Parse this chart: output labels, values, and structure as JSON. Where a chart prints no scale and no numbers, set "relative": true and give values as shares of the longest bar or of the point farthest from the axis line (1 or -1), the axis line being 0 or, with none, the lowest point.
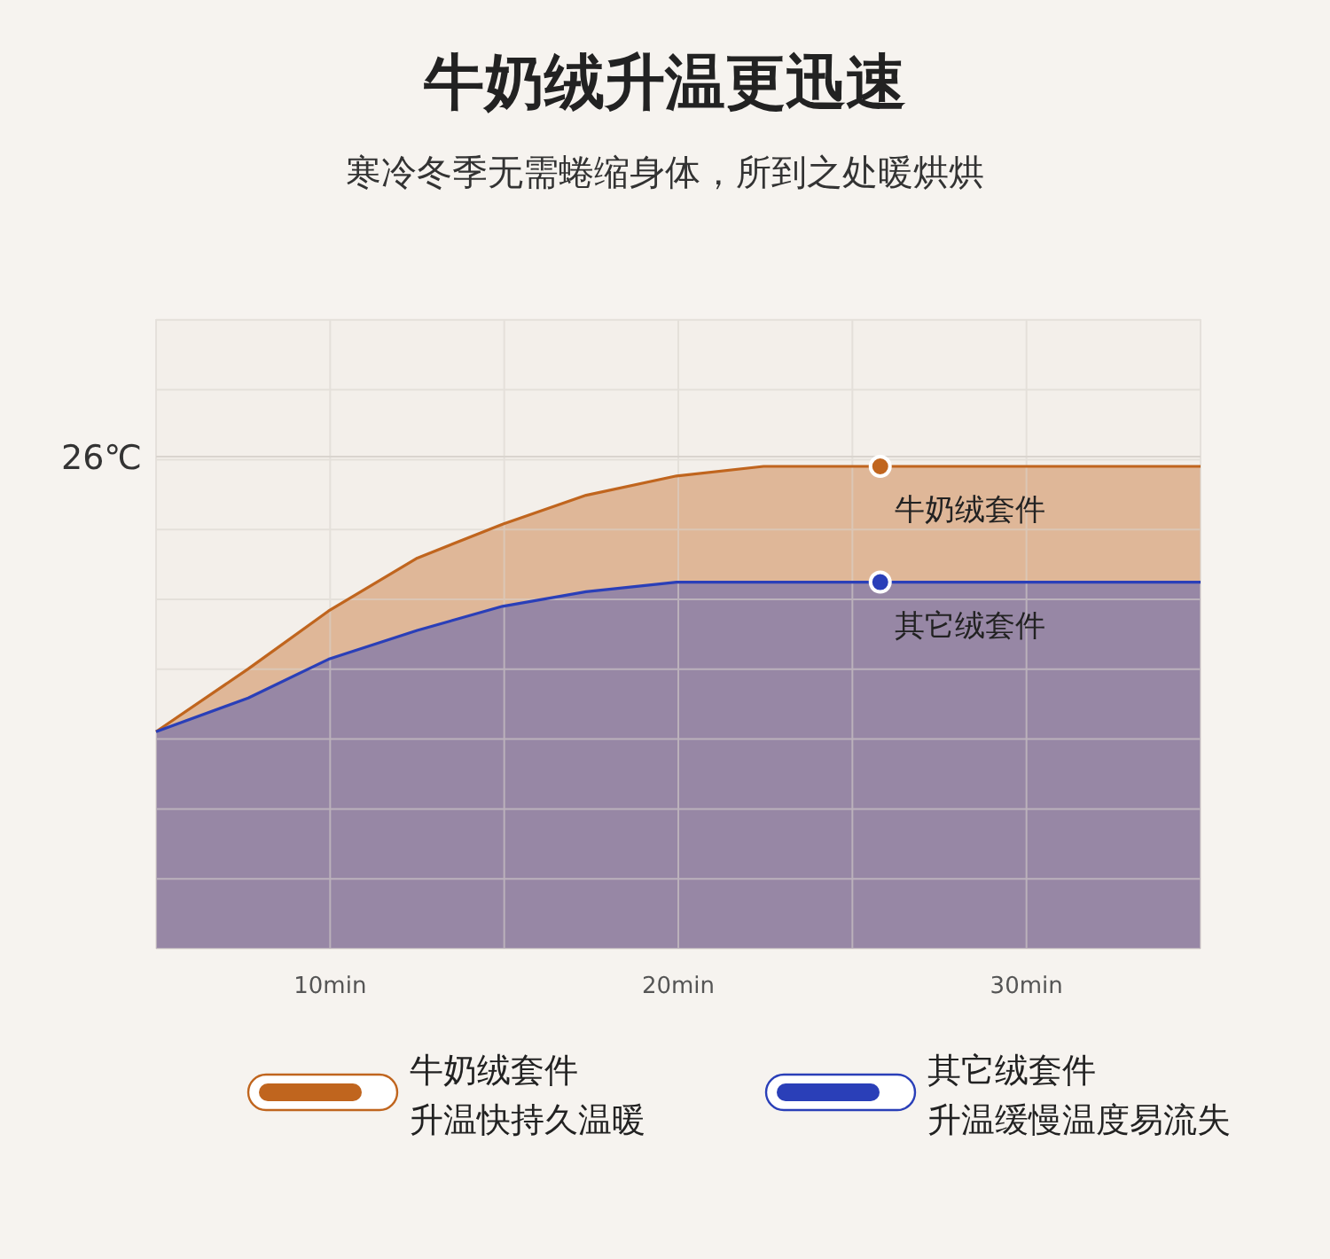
{
  "chart_data": {
    "type": "area",
    "title": "牛奶绒升温更迅速",
    "subtitle": "寒冷冬季无需蜷缩身体，所到之处暖烘烘",
    "relative": true,
    "xlim": [
      5,
      35
    ],
    "xticks": [
      {
        "value": 10,
        "label": "10min"
      },
      {
        "value": 20,
        "label": "20min"
      },
      {
        "value": 30,
        "label": "30min"
      }
    ],
    "grid": true,
    "legend": "bottom",
    "series": [
      {
        "name": "牛奶绒套件",
        "color": "#c0651e",
        "x": [
          5,
          7.65,
          9.95,
          12.5,
          14.95,
          17.35,
          19.95,
          22.45,
          25.8,
          35
        ],
        "values": [
          0.45,
          0.58,
          0.7,
          0.81,
          0.88,
          0.94,
          0.98,
          1,
          1,
          1
        ]
      },
      {
        "name": "其它绒套件",
        "color": "#2a3fb8",
        "x": [
          5,
          7.65,
          9.95,
          12.5,
          14.95,
          17.35,
          19.95,
          25.8,
          35
        ],
        "values": [
          0.45,
          0.52,
          0.6,
          0.66,
          0.71,
          0.74,
          0.76,
          0.76,
          0.76
        ]
      }
    ],
    "ref_lines": [
      {
        "axis": "y",
        "value": 1.02,
        "label": "26℃"
      }
    ],
    "annotations": [
      "升温快持久温暖",
      "升温缓慢温度易流失",
      {
        "text": "牛奶绒套件",
        "x": 25.8,
        "y": 1
      },
      {
        "text": "其它绒套件",
        "x": 25.8,
        "y": 0.76
      }
    ]
  }
}
